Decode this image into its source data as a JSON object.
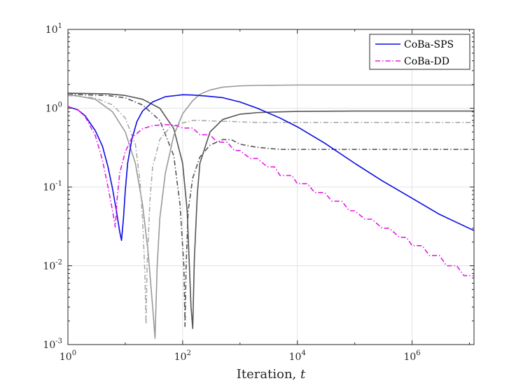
{
  "chart_data": {
    "type": "line",
    "title": "",
    "xlabel": "Iteration, ",
    "xlabel_var": "t",
    "ylabel": "",
    "xscale": "log",
    "yscale": "log",
    "xlim": [
      1,
      12000000
    ],
    "ylim": [
      0.001,
      10
    ],
    "grid": true,
    "legend_position": "top-right",
    "x_ticks": [
      {
        "value": 1,
        "base": "10",
        "exp": "0"
      },
      {
        "value": 100,
        "base": "10",
        "exp": "2"
      },
      {
        "value": 10000,
        "base": "10",
        "exp": "4"
      },
      {
        "value": 1000000,
        "base": "10",
        "exp": "6"
      }
    ],
    "y_ticks": [
      {
        "value": 0.001,
        "base": "10",
        "exp": "-3"
      },
      {
        "value": 0.01,
        "base": "10",
        "exp": "-2"
      },
      {
        "value": 0.1,
        "base": "10",
        "exp": "-1"
      },
      {
        "value": 1,
        "base": "10",
        "exp": "0"
      },
      {
        "value": 10,
        "base": "10",
        "exp": "1"
      }
    ],
    "series": [
      {
        "name": "CoBa-SPS",
        "in_legend": true,
        "color": "#0a0ae6",
        "style": "solid",
        "x": [
          1,
          1.5,
          2,
          3,
          4,
          5,
          6,
          7,
          8,
          8.6,
          9.3,
          10,
          11,
          13,
          16,
          20,
          30,
          50,
          100,
          150,
          250,
          500,
          1000,
          2000,
          5000,
          10000,
          30000,
          100000,
          300000,
          1000000,
          3000000,
          12000000
        ],
        "y": [
          1.05,
          0.95,
          0.8,
          0.52,
          0.33,
          0.18,
          0.095,
          0.05,
          0.027,
          0.021,
          0.04,
          0.09,
          0.2,
          0.4,
          0.68,
          0.92,
          1.2,
          1.4,
          1.48,
          1.47,
          1.43,
          1.36,
          1.2,
          1.0,
          0.75,
          0.58,
          0.36,
          0.2,
          0.12,
          0.072,
          0.045,
          0.028
        ]
      },
      {
        "name": "CoBa-DD",
        "in_legend": true,
        "color": "#e619e6",
        "style": "dashdot",
        "x": [
          1,
          1.5,
          2,
          3,
          4,
          5,
          6,
          6.7,
          7.2,
          8,
          10,
          13,
          20,
          30,
          50,
          80,
          100,
          150,
          200,
          300,
          400,
          600,
          800,
          1000,
          1500,
          2000,
          3000,
          4000,
          5000,
          8000,
          10000,
          15000,
          20000,
          30000,
          40000,
          60000,
          80000,
          100000,
          150000,
          200000,
          300000,
          400000,
          600000,
          800000,
          1000000,
          1500000,
          2000000,
          3000000,
          4000000,
          6000000,
          8000000,
          12000000
        ],
        "y": [
          1.05,
          0.95,
          0.78,
          0.45,
          0.22,
          0.1,
          0.05,
          0.031,
          0.07,
          0.15,
          0.28,
          0.42,
          0.55,
          0.6,
          0.62,
          0.6,
          0.56,
          0.56,
          0.46,
          0.46,
          0.37,
          0.37,
          0.29,
          0.29,
          0.23,
          0.23,
          0.18,
          0.18,
          0.14,
          0.14,
          0.11,
          0.11,
          0.085,
          0.085,
          0.066,
          0.066,
          0.05,
          0.05,
          0.039,
          0.039,
          0.03,
          0.03,
          0.023,
          0.023,
          0.018,
          0.018,
          0.0135,
          0.0135,
          0.01,
          0.01,
          0.0075,
          0.0075
        ]
      },
      {
        "name": "gray-solid-dark",
        "in_legend": false,
        "color": "#555555",
        "style": "solid",
        "x": [
          1,
          5,
          10,
          20,
          40,
          70,
          100,
          120,
          140,
          150,
          160,
          180,
          200,
          300,
          500,
          1000,
          2000,
          5000,
          10000,
          100000,
          1000000,
          12000000
        ],
        "y": [
          1.55,
          1.52,
          1.45,
          1.3,
          1.0,
          0.55,
          0.2,
          0.05,
          0.003,
          0.0016,
          0.012,
          0.08,
          0.2,
          0.5,
          0.72,
          0.84,
          0.88,
          0.9,
          0.91,
          0.92,
          0.92,
          0.92
        ]
      },
      {
        "name": "gray-dashdot-dark",
        "in_legend": false,
        "color": "#555555",
        "style": "dashdot",
        "x": [
          1,
          5,
          10,
          20,
          40,
          70,
          90,
          105,
          110,
          115,
          125,
          150,
          200,
          300,
          500,
          700,
          1000,
          1500,
          2000,
          3000,
          5000,
          10000,
          100000,
          1000000,
          12000000
        ],
        "y": [
          1.5,
          1.45,
          1.35,
          1.1,
          0.7,
          0.25,
          0.06,
          0.01,
          0.0017,
          0.01,
          0.05,
          0.13,
          0.24,
          0.34,
          0.4,
          0.4,
          0.35,
          0.33,
          0.32,
          0.31,
          0.3,
          0.3,
          0.3,
          0.3,
          0.3
        ]
      },
      {
        "name": "gray-solid-light",
        "in_legend": false,
        "color": "#999999",
        "style": "solid",
        "x": [
          1,
          3,
          6,
          10,
          15,
          20,
          25,
          30,
          33,
          36,
          40,
          50,
          70,
          100,
          150,
          200,
          300,
          500,
          1000,
          2000,
          5000,
          10000,
          100000,
          12000000
        ],
        "y": [
          1.5,
          1.3,
          0.9,
          0.5,
          0.2,
          0.06,
          0.015,
          0.003,
          0.0012,
          0.01,
          0.04,
          0.15,
          0.45,
          0.85,
          1.25,
          1.5,
          1.7,
          1.85,
          1.92,
          1.95,
          1.96,
          1.97,
          1.97,
          1.97
        ]
      },
      {
        "name": "gray-dashdot-light",
        "in_legend": false,
        "color": "#aaaaaa",
        "style": "dashdot",
        "x": [
          1,
          3,
          6,
          10,
          15,
          18,
          20,
          22,
          23,
          24,
          27,
          30,
          40,
          60,
          100,
          150,
          200,
          300,
          500,
          700,
          1000,
          2000,
          5000,
          10000,
          100000,
          1000000,
          12000000
        ],
        "y": [
          1.45,
          1.35,
          1.1,
          0.75,
          0.35,
          0.12,
          0.04,
          0.008,
          0.0018,
          0.01,
          0.07,
          0.18,
          0.4,
          0.57,
          0.65,
          0.7,
          0.7,
          0.69,
          0.68,
          0.68,
          0.67,
          0.66,
          0.66,
          0.66,
          0.66,
          0.66,
          0.66
        ]
      }
    ]
  }
}
